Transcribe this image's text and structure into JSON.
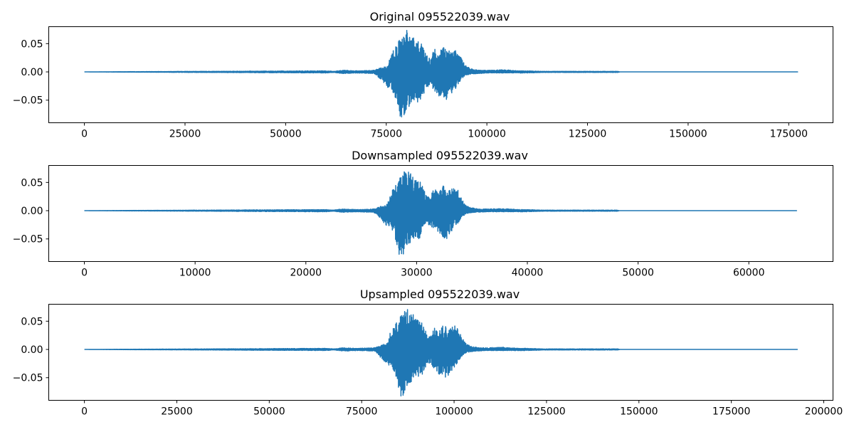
{
  "colors": {
    "series": "#1f77b4",
    "background": "#ffffff",
    "axes": "#000000"
  },
  "chart_data": [
    {
      "type": "line",
      "title": "Original 095522039.wav",
      "xlabel": "",
      "ylabel": "",
      "xlim": [
        -8857,
        186000
      ],
      "ylim": [
        -0.09,
        0.08
      ],
      "xticks": [
        0,
        25000,
        50000,
        75000,
        100000,
        125000,
        150000,
        175000
      ],
      "xtick_labels": [
        "0",
        "25000",
        "50000",
        "75000",
        "100000",
        "125000",
        "150000",
        "175000"
      ],
      "yticks": [
        0.05,
        0.0,
        -0.05
      ],
      "ytick_labels": [
        "0.05",
        "0.00",
        "−0.05"
      ],
      "grid": false,
      "x_end": 177200,
      "series": [
        {
          "x": [
            0,
            60000,
            62000,
            64000,
            68000,
            72000,
            75500,
            76000,
            77000,
            78000,
            79000,
            80000,
            81000,
            82000,
            83000,
            84000,
            85000,
            86000,
            87000,
            88000,
            89000,
            90000,
            91000,
            92000,
            93000,
            94000,
            95000,
            96000,
            98000,
            100000,
            104000,
            108000,
            110000,
            114000,
            120000,
            126000,
            132500,
            133000,
            177200
          ],
          "upper": [
            0,
            0.002,
            0.001,
            0.003,
            0.002,
            0.003,
            0.012,
            0.033,
            0.04,
            0.055,
            0.063,
            0.075,
            0.068,
            0.06,
            0.055,
            0.048,
            0.03,
            0.022,
            0.045,
            0.03,
            0.045,
            0.04,
            0.038,
            0.042,
            0.035,
            0.02,
            0.01,
            0.006,
            0.003,
            0.003,
            0.004,
            0.002,
            0.002,
            0.001,
            0.001,
            0.001,
            0.001,
            0,
            0
          ],
          "lower": [
            0,
            -0.002,
            -0.001,
            -0.003,
            -0.002,
            -0.003,
            -0.03,
            -0.025,
            -0.045,
            -0.075,
            -0.088,
            -0.065,
            -0.06,
            -0.05,
            -0.055,
            -0.045,
            -0.03,
            -0.025,
            -0.035,
            -0.045,
            -0.048,
            -0.052,
            -0.04,
            -0.032,
            -0.02,
            -0.01,
            -0.006,
            -0.004,
            -0.003,
            -0.002,
            -0.002,
            -0.002,
            -0.002,
            -0.001,
            -0.001,
            -0.001,
            -0.001,
            0,
            0
          ]
        }
      ]
    },
    {
      "type": "line",
      "title": "Downsampled 095522039.wav",
      "xlabel": "",
      "ylabel": "",
      "xlim": [
        -3216,
        67600
      ],
      "ylim": [
        -0.09,
        0.08
      ],
      "xticks": [
        0,
        10000,
        20000,
        30000,
        40000,
        50000,
        60000
      ],
      "xtick_labels": [
        "0",
        "10000",
        "20000",
        "30000",
        "40000",
        "50000",
        "60000"
      ],
      "yticks": [
        0.05,
        0.0,
        -0.05
      ],
      "ytick_labels": [
        "0.05",
        "0.00",
        "−0.05"
      ],
      "grid": false,
      "x_end": 64300,
      "series": [
        {
          "x": [
            0,
            21800,
            22500,
            23200,
            24700,
            26100,
            27400,
            27600,
            28000,
            28300,
            28700,
            29000,
            29400,
            29800,
            30100,
            30500,
            30800,
            31200,
            31600,
            31900,
            32300,
            32700,
            33000,
            33400,
            33800,
            34100,
            34500,
            34800,
            35600,
            36300,
            37700,
            39200,
            39900,
            41400,
            43600,
            45700,
            48100,
            48300,
            64300
          ],
          "upper": [
            0,
            0.002,
            0.001,
            0.003,
            0.002,
            0.003,
            0.012,
            0.033,
            0.04,
            0.055,
            0.063,
            0.075,
            0.068,
            0.06,
            0.055,
            0.048,
            0.03,
            0.022,
            0.045,
            0.03,
            0.045,
            0.04,
            0.038,
            0.042,
            0.035,
            0.02,
            0.01,
            0.006,
            0.003,
            0.003,
            0.004,
            0.002,
            0.002,
            0.001,
            0.001,
            0.001,
            0.001,
            0,
            0
          ],
          "lower": [
            0,
            -0.002,
            -0.001,
            -0.003,
            -0.002,
            -0.003,
            -0.03,
            -0.025,
            -0.045,
            -0.075,
            -0.088,
            -0.065,
            -0.06,
            -0.05,
            -0.055,
            -0.045,
            -0.03,
            -0.025,
            -0.035,
            -0.045,
            -0.048,
            -0.052,
            -0.04,
            -0.032,
            -0.02,
            -0.01,
            -0.006,
            -0.004,
            -0.003,
            -0.002,
            -0.002,
            -0.002,
            -0.002,
            -0.001,
            -0.001,
            -0.001,
            -0.001,
            0,
            0
          ]
        }
      ]
    },
    {
      "type": "line",
      "title": "Upsampled 095522039.wav",
      "xlabel": "",
      "ylabel": "",
      "xlim": [
        -9648,
        202500
      ],
      "ylim": [
        -0.09,
        0.08
      ],
      "xticks": [
        0,
        25000,
        50000,
        75000,
        100000,
        125000,
        150000,
        175000,
        200000
      ],
      "xtick_labels": [
        "0",
        "25000",
        "50000",
        "75000",
        "100000",
        "125000",
        "150000",
        "175000",
        "200000"
      ],
      "yticks": [
        0.05,
        0.0,
        -0.05
      ],
      "ytick_labels": [
        "0.05",
        "0.00",
        "−0.05"
      ],
      "grid": false,
      "x_end": 192950,
      "series": [
        {
          "x": [
            0,
            65300,
            67500,
            69700,
            74000,
            78400,
            82200,
            82800,
            83800,
            84900,
            86000,
            87100,
            88200,
            89300,
            90400,
            91400,
            92500,
            93600,
            94700,
            95800,
            96900,
            98000,
            99100,
            100200,
            101300,
            102400,
            103400,
            104500,
            106700,
            108900,
            113200,
            117600,
            119800,
            124100,
            130700,
            137200,
            144300,
            144800,
            192950
          ],
          "upper": [
            0,
            0.002,
            0.001,
            0.003,
            0.002,
            0.003,
            0.012,
            0.033,
            0.04,
            0.055,
            0.063,
            0.075,
            0.068,
            0.06,
            0.055,
            0.048,
            0.03,
            0.022,
            0.045,
            0.03,
            0.045,
            0.04,
            0.038,
            0.042,
            0.035,
            0.02,
            0.01,
            0.006,
            0.003,
            0.003,
            0.004,
            0.002,
            0.002,
            0.001,
            0.001,
            0.001,
            0.001,
            0,
            0
          ],
          "lower": [
            0,
            -0.002,
            -0.001,
            -0.003,
            -0.002,
            -0.003,
            -0.03,
            -0.025,
            -0.045,
            -0.075,
            -0.088,
            -0.065,
            -0.06,
            -0.05,
            -0.055,
            -0.045,
            -0.03,
            -0.025,
            -0.035,
            -0.045,
            -0.048,
            -0.052,
            -0.04,
            -0.032,
            -0.02,
            -0.01,
            -0.006,
            -0.004,
            -0.003,
            -0.002,
            -0.002,
            -0.002,
            -0.002,
            -0.001,
            -0.001,
            -0.001,
            -0.001,
            0,
            0
          ]
        }
      ]
    }
  ]
}
